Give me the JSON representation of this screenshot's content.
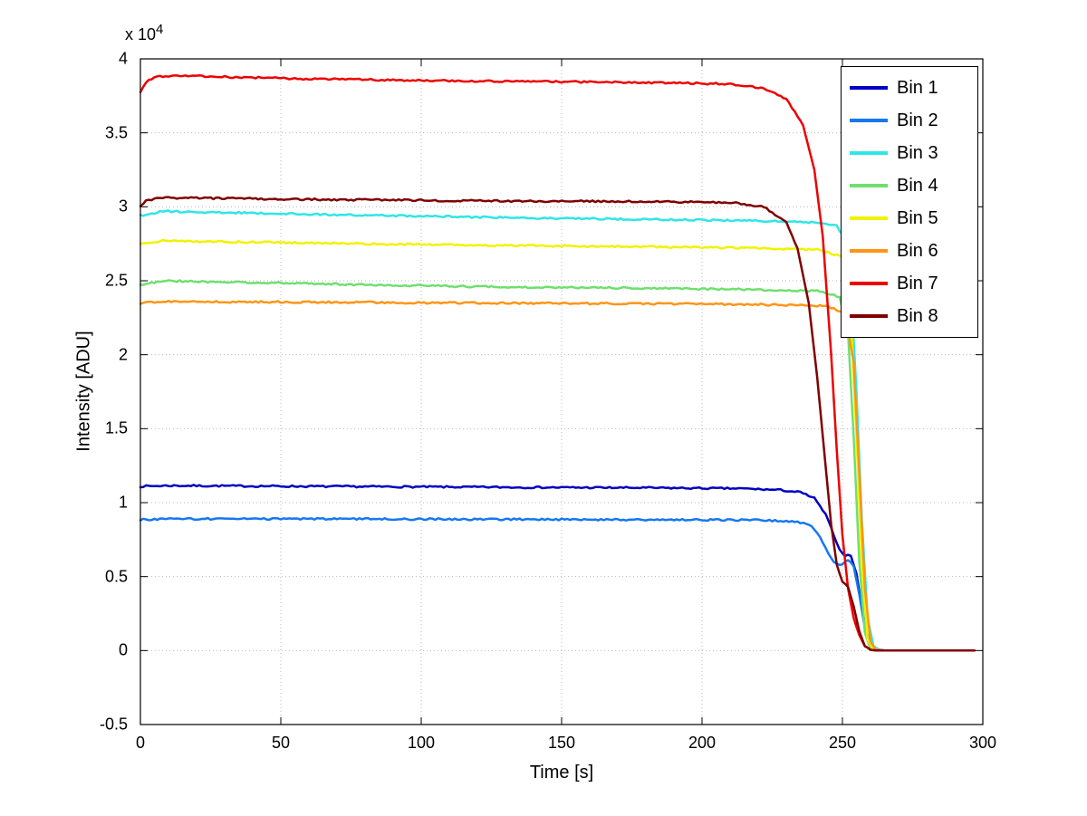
{
  "chart_data": {
    "type": "line",
    "title": "",
    "xlabel": "Time [s]",
    "ylabel": "Intensity [ADU]",
    "y_scale_label": "x 10^4",
    "y_exp_base": "x 10",
    "y_exp_power": "4",
    "y_units": "values in units of 10^4 ADU",
    "xlim": [
      0,
      300
    ],
    "ylim": [
      -0.5,
      4
    ],
    "xticks": [
      0,
      50,
      100,
      150,
      200,
      250,
      300
    ],
    "yticks": [
      -0.5,
      0,
      0.5,
      1,
      1.5,
      2,
      2.5,
      3,
      3.5,
      4
    ],
    "grid": "dotted",
    "legend_position": "top-right inside",
    "noise_amplitude": 0.006,
    "series": [
      {
        "name": "Bin 1",
        "color": "#0000c0",
        "points": [
          [
            0,
            1.11
          ],
          [
            10,
            1.115
          ],
          [
            60,
            1.11
          ],
          [
            120,
            1.105
          ],
          [
            180,
            1.1
          ],
          [
            215,
            1.095
          ],
          [
            228,
            1.085
          ],
          [
            235,
            1.07
          ],
          [
            240,
            1.03
          ],
          [
            244,
            0.92
          ],
          [
            247,
            0.78
          ],
          [
            249,
            0.68
          ],
          [
            251,
            0.645
          ],
          [
            253,
            0.64
          ],
          [
            255,
            0.52
          ],
          [
            257,
            0.28
          ],
          [
            259,
            0.1
          ],
          [
            261,
            0.02
          ],
          [
            263,
            0.005
          ],
          [
            265,
            0
          ],
          [
            297,
            0
          ]
        ]
      },
      {
        "name": "Bin 2",
        "color": "#1578f0",
        "points": [
          [
            0,
            0.885
          ],
          [
            10,
            0.89
          ],
          [
            60,
            0.89
          ],
          [
            120,
            0.888
          ],
          [
            180,
            0.885
          ],
          [
            220,
            0.882
          ],
          [
            232,
            0.875
          ],
          [
            238,
            0.855
          ],
          [
            241,
            0.8
          ],
          [
            244,
            0.7
          ],
          [
            246,
            0.62
          ],
          [
            248,
            0.585
          ],
          [
            250,
            0.58
          ],
          [
            252,
            0.615
          ],
          [
            254,
            0.57
          ],
          [
            256,
            0.38
          ],
          [
            258,
            0.15
          ],
          [
            260,
            0.04
          ],
          [
            262,
            0.005
          ],
          [
            264,
            0
          ],
          [
            297,
            0
          ]
        ]
      },
      {
        "name": "Bin 3",
        "color": "#2fe6e6",
        "points": [
          [
            0,
            2.94
          ],
          [
            8,
            2.97
          ],
          [
            60,
            2.95
          ],
          [
            120,
            2.93
          ],
          [
            180,
            2.915
          ],
          [
            220,
            2.905
          ],
          [
            240,
            2.895
          ],
          [
            248,
            2.87
          ],
          [
            251,
            2.78
          ],
          [
            253,
            2.45
          ],
          [
            255,
            1.75
          ],
          [
            257,
            0.85
          ],
          [
            259,
            0.22
          ],
          [
            261,
            0.03
          ],
          [
            263,
            0
          ],
          [
            297,
            0
          ]
        ]
      },
      {
        "name": "Bin 4",
        "color": "#6fdf6f",
        "points": [
          [
            0,
            2.47
          ],
          [
            8,
            2.5
          ],
          [
            60,
            2.48
          ],
          [
            120,
            2.46
          ],
          [
            180,
            2.45
          ],
          [
            220,
            2.44
          ],
          [
            242,
            2.43
          ],
          [
            249,
            2.39
          ],
          [
            252,
            2.15
          ],
          [
            254,
            1.45
          ],
          [
            256,
            0.6
          ],
          [
            258,
            0.12
          ],
          [
            260,
            0.01
          ],
          [
            262,
            0
          ],
          [
            297,
            0
          ]
        ]
      },
      {
        "name": "Bin 5",
        "color": "#f2f200",
        "points": [
          [
            0,
            2.75
          ],
          [
            8,
            2.77
          ],
          [
            60,
            2.755
          ],
          [
            120,
            2.74
          ],
          [
            180,
            2.73
          ],
          [
            220,
            2.72
          ],
          [
            242,
            2.71
          ],
          [
            250,
            2.66
          ],
          [
            253,
            2.25
          ],
          [
            255,
            1.45
          ],
          [
            257,
            0.55
          ],
          [
            259,
            0.08
          ],
          [
            261,
            0.005
          ],
          [
            263,
            0
          ],
          [
            297,
            0
          ]
        ]
      },
      {
        "name": "Bin 6",
        "color": "#ff9517",
        "points": [
          [
            0,
            2.35
          ],
          [
            8,
            2.36
          ],
          [
            60,
            2.355
          ],
          [
            120,
            2.35
          ],
          [
            180,
            2.345
          ],
          [
            220,
            2.34
          ],
          [
            244,
            2.33
          ],
          [
            251,
            2.28
          ],
          [
            254,
            1.95
          ],
          [
            256,
            1.2
          ],
          [
            258,
            0.42
          ],
          [
            260,
            0.06
          ],
          [
            262,
            0.005
          ],
          [
            264,
            0
          ],
          [
            297,
            0
          ]
        ]
      },
      {
        "name": "Bin 7",
        "color": "#ee0000",
        "points": [
          [
            0,
            3.78
          ],
          [
            2,
            3.84
          ],
          [
            5,
            3.88
          ],
          [
            15,
            3.885
          ],
          [
            60,
            3.865
          ],
          [
            120,
            3.85
          ],
          [
            180,
            3.84
          ],
          [
            210,
            3.83
          ],
          [
            222,
            3.8
          ],
          [
            230,
            3.73
          ],
          [
            236,
            3.55
          ],
          [
            240,
            3.25
          ],
          [
            243,
            2.8
          ],
          [
            246,
            2.0
          ],
          [
            248,
            1.35
          ],
          [
            250,
            0.78
          ],
          [
            252,
            0.42
          ],
          [
            254,
            0.22
          ],
          [
            256,
            0.1
          ],
          [
            258,
            0.03
          ],
          [
            260,
            0.005
          ],
          [
            262,
            0
          ],
          [
            297,
            0
          ]
        ]
      },
      {
        "name": "Bin 8",
        "color": "#800000",
        "points": [
          [
            0,
            3.0
          ],
          [
            2,
            3.04
          ],
          [
            6,
            3.06
          ],
          [
            15,
            3.06
          ],
          [
            60,
            3.05
          ],
          [
            120,
            3.04
          ],
          [
            180,
            3.035
          ],
          [
            210,
            3.03
          ],
          [
            222,
            3.0
          ],
          [
            230,
            2.9
          ],
          [
            234,
            2.72
          ],
          [
            238,
            2.35
          ],
          [
            241,
            1.85
          ],
          [
            244,
            1.25
          ],
          [
            246,
            0.85
          ],
          [
            248,
            0.58
          ],
          [
            250,
            0.46
          ],
          [
            252,
            0.43
          ],
          [
            254,
            0.3
          ],
          [
            256,
            0.13
          ],
          [
            258,
            0.035
          ],
          [
            260,
            0.005
          ],
          [
            262,
            0
          ],
          [
            297,
            0
          ]
        ]
      }
    ]
  }
}
